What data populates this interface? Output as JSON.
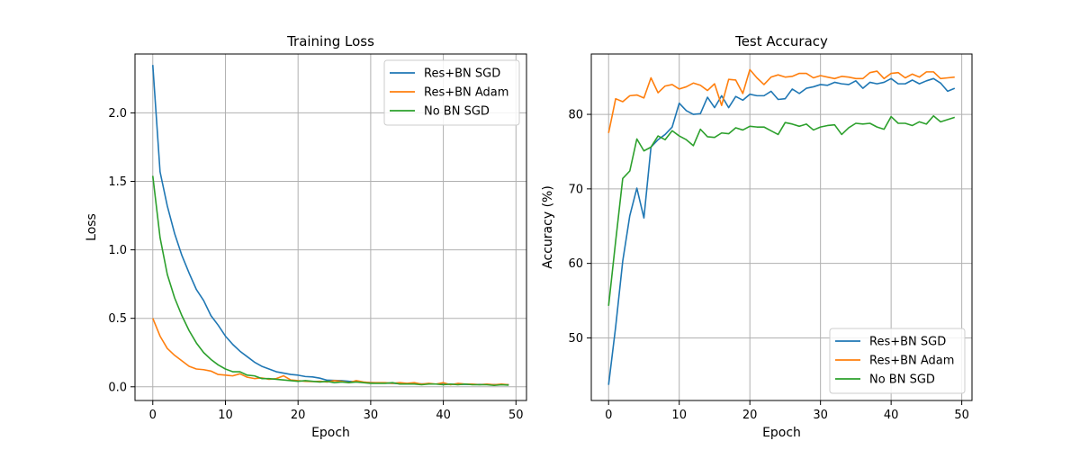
{
  "chart_data": [
    {
      "type": "line",
      "title": "Training Loss",
      "xlabel": "Epoch",
      "ylabel": "Loss",
      "xlim": [
        -2.45,
        51.45
      ],
      "ylim": [
        -0.1,
        2.43
      ],
      "xticks": [
        0,
        10,
        20,
        30,
        40,
        50
      ],
      "xtick_labels": [
        "0",
        "10",
        "20",
        "30",
        "40",
        "50"
      ],
      "yticks": [
        0.0,
        0.5,
        1.0,
        1.5,
        2.0
      ],
      "ytick_labels": [
        "0.0",
        "0.5",
        "1.0",
        "1.5",
        "2.0"
      ],
      "grid": true,
      "legend": "top-right",
      "x": [
        0,
        1,
        2,
        3,
        4,
        5,
        6,
        7,
        8,
        9,
        10,
        11,
        12,
        13,
        14,
        15,
        16,
        17,
        18,
        19,
        20,
        21,
        22,
        23,
        24,
        25,
        26,
        27,
        28,
        29,
        30,
        31,
        32,
        33,
        34,
        35,
        36,
        37,
        38,
        39,
        40,
        41,
        42,
        43,
        44,
        45,
        46,
        47,
        48,
        49
      ],
      "series": [
        {
          "name": "Res+BN SGD",
          "color": "#1f77b4",
          "values": [
            2.35,
            1.57,
            1.32,
            1.12,
            0.96,
            0.83,
            0.71,
            0.63,
            0.52,
            0.45,
            0.37,
            0.31,
            0.26,
            0.22,
            0.18,
            0.15,
            0.13,
            0.11,
            0.1,
            0.09,
            0.085,
            0.075,
            0.072,
            0.063,
            0.048,
            0.047,
            0.045,
            0.04,
            0.037,
            0.033,
            0.031,
            0.029,
            0.027,
            0.025,
            0.024,
            0.023,
            0.022,
            0.021,
            0.02,
            0.02,
            0.019,
            0.019,
            0.018,
            0.018,
            0.017,
            0.017,
            0.017,
            0.016,
            0.016,
            0.016
          ]
        },
        {
          "name": "Res+BN Adam",
          "color": "#ff7f0e",
          "values": [
            0.5,
            0.37,
            0.28,
            0.23,
            0.19,
            0.15,
            0.13,
            0.125,
            0.115,
            0.09,
            0.085,
            0.08,
            0.095,
            0.07,
            0.06,
            0.065,
            0.055,
            0.06,
            0.08,
            0.05,
            0.045,
            0.04,
            0.038,
            0.04,
            0.035,
            0.045,
            0.04,
            0.03,
            0.045,
            0.035,
            0.03,
            0.03,
            0.03,
            0.025,
            0.03,
            0.025,
            0.03,
            0.02,
            0.025,
            0.02,
            0.03,
            0.015,
            0.025,
            0.02,
            0.02,
            0.015,
            0.02,
            0.015,
            0.02,
            0.015
          ]
        },
        {
          "name": "No BN SGD",
          "color": "#2ca02c",
          "values": [
            1.54,
            1.09,
            0.82,
            0.65,
            0.52,
            0.41,
            0.32,
            0.25,
            0.2,
            0.16,
            0.13,
            0.11,
            0.11,
            0.085,
            0.08,
            0.06,
            0.06,
            0.055,
            0.05,
            0.045,
            0.04,
            0.045,
            0.04,
            0.035,
            0.04,
            0.03,
            0.035,
            0.03,
            0.035,
            0.03,
            0.025,
            0.025,
            0.025,
            0.03,
            0.02,
            0.02,
            0.02,
            0.015,
            0.02,
            0.02,
            0.015,
            0.02,
            0.015,
            0.02,
            0.015,
            0.015,
            0.015,
            0.01,
            0.015,
            0.012
          ]
        }
      ]
    },
    {
      "type": "line",
      "title": "Test Accuracy",
      "xlabel": "Epoch",
      "ylabel": "Accuracy (%)",
      "xlim": [
        -2.45,
        51.45
      ],
      "ylim": [
        41.6,
        88.1
      ],
      "xticks": [
        0,
        10,
        20,
        30,
        40,
        50
      ],
      "xtick_labels": [
        "0",
        "10",
        "20",
        "30",
        "40",
        "50"
      ],
      "yticks": [
        50,
        60,
        70,
        80
      ],
      "ytick_labels": [
        "50",
        "60",
        "70",
        "80"
      ],
      "grid": true,
      "legend": "bottom-right",
      "x": [
        0,
        1,
        2,
        3,
        4,
        5,
        6,
        7,
        8,
        9,
        10,
        11,
        12,
        13,
        14,
        15,
        16,
        17,
        18,
        19,
        20,
        21,
        22,
        23,
        24,
        25,
        26,
        27,
        28,
        29,
        30,
        31,
        32,
        33,
        34,
        35,
        36,
        37,
        38,
        39,
        40,
        41,
        42,
        43,
        44,
        45,
        46,
        47,
        48,
        49
      ],
      "series": [
        {
          "name": "Res+BN SGD",
          "color": "#1f77b4",
          "values": [
            43.7,
            51.5,
            60.3,
            66.4,
            70.1,
            66.1,
            75.6,
            76.6,
            77.3,
            78.3,
            81.5,
            80.5,
            80.0,
            80.1,
            82.3,
            80.9,
            82.5,
            80.9,
            82.4,
            81.9,
            82.7,
            82.5,
            82.5,
            83.1,
            82.0,
            82.1,
            83.4,
            82.8,
            83.5,
            83.7,
            84.0,
            83.9,
            84.3,
            84.1,
            84.0,
            84.5,
            83.5,
            84.3,
            84.1,
            84.3,
            84.8,
            84.1,
            84.1,
            84.6,
            84.1,
            84.5,
            84.8,
            84.2,
            83.1,
            83.5
          ]
        },
        {
          "name": "Res+BN Adam",
          "color": "#ff7f0e",
          "values": [
            77.5,
            82.1,
            81.7,
            82.5,
            82.6,
            82.2,
            84.9,
            82.9,
            83.8,
            84.0,
            83.4,
            83.7,
            84.2,
            83.9,
            83.2,
            84.1,
            81.2,
            84.7,
            84.6,
            82.8,
            86.0,
            84.9,
            84.0,
            85.0,
            85.3,
            85.0,
            85.1,
            85.5,
            85.5,
            84.9,
            85.2,
            85.0,
            84.8,
            85.1,
            85.0,
            84.8,
            84.8,
            85.6,
            85.8,
            84.8,
            85.5,
            85.6,
            84.9,
            85.4,
            85.0,
            85.7,
            85.7,
            84.8,
            84.9,
            85.0
          ]
        },
        {
          "name": "No BN SGD",
          "color": "#2ca02c",
          "values": [
            54.3,
            63.0,
            71.4,
            72.4,
            76.7,
            75.1,
            75.6,
            77.1,
            76.6,
            77.8,
            77.1,
            76.6,
            75.8,
            78.0,
            77.0,
            76.9,
            77.5,
            77.4,
            78.2,
            77.9,
            78.4,
            78.3,
            78.3,
            77.8,
            77.3,
            78.9,
            78.7,
            78.4,
            78.7,
            77.9,
            78.3,
            78.5,
            78.6,
            77.3,
            78.2,
            78.8,
            78.7,
            78.8,
            78.3,
            78.0,
            79.7,
            78.8,
            78.8,
            78.5,
            79.0,
            78.7,
            79.8,
            79.0,
            79.3,
            79.6
          ]
        }
      ]
    }
  ]
}
